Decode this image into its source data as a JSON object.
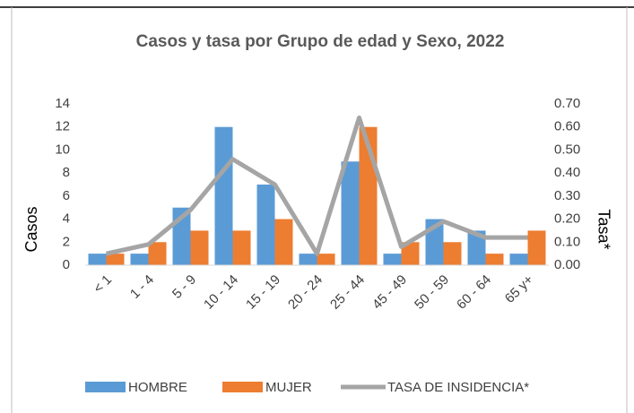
{
  "chart_data": {
    "type": "bar_line",
    "title": "Casos y tasa por Grupo de edad y Sexo, 2022",
    "y_label": "Casos",
    "y2_label": "Tasa*",
    "categories": [
      "< 1",
      "1 - 4",
      "5 - 9",
      "10 - 14",
      "15 - 19",
      "20 - 24",
      "25 - 44",
      "45 - 49",
      "50 - 59",
      "60 - 64",
      "65 y+"
    ],
    "series": [
      {
        "name": "HOMBRE",
        "type": "bar",
        "color": "#5b9bd5",
        "values": [
          1,
          1,
          5,
          12,
          7,
          1,
          9,
          1,
          4,
          3,
          1
        ]
      },
      {
        "name": "MUJER",
        "type": "bar",
        "color": "#ed7d31",
        "values": [
          1,
          2,
          3,
          3,
          4,
          1,
          12,
          2,
          2,
          1,
          3
        ]
      },
      {
        "name": "TASA DE INSIDENCIA*",
        "type": "line",
        "axis": "y2",
        "color": "#a5a5a5",
        "values": [
          0.05,
          0.09,
          0.24,
          0.46,
          0.35,
          0.05,
          0.64,
          0.08,
          0.19,
          0.12,
          0.12
        ]
      }
    ],
    "ylim": [
      0,
      14
    ],
    "yticks": [
      0,
      2,
      4,
      6,
      8,
      10,
      12,
      14
    ],
    "y2lim": [
      0,
      0.7
    ],
    "y2ticks": [
      {
        "value": 0,
        "label": "0.00"
      },
      {
        "value": 0.1,
        "label": "0.10"
      },
      {
        "value": 0.2,
        "label": "0.20"
      },
      {
        "value": 0.3,
        "label": "0.30"
      },
      {
        "value": 0.4,
        "label": "0.40"
      },
      {
        "value": 0.5,
        "label": "0.50"
      },
      {
        "value": 0.6,
        "label": "0.60"
      },
      {
        "value": 0.7,
        "label": "0.70"
      }
    ],
    "grid": false,
    "legend": "bottom"
  }
}
